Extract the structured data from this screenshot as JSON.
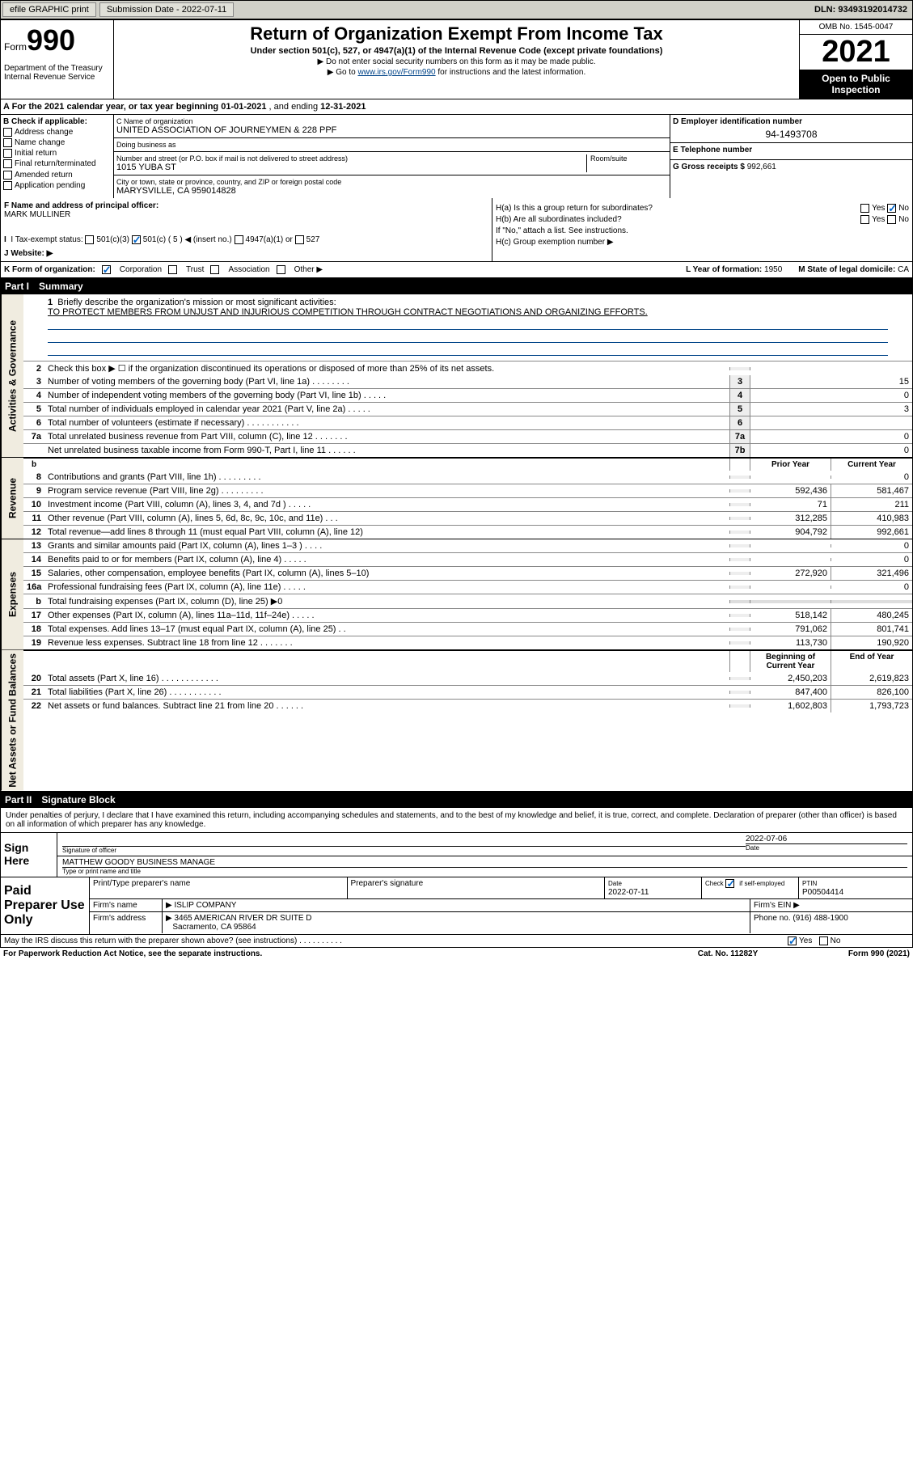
{
  "top_bar": {
    "efile": "efile GRAPHIC print",
    "submission_label": "Submission Date",
    "submission_date": "2022-07-11",
    "dln_label": "DLN:",
    "dln": "93493192014732"
  },
  "header": {
    "form_word": "Form",
    "form_num": "990",
    "dept": "Department of the Treasury Internal Revenue Service",
    "title": "Return of Organization Exempt From Income Tax",
    "sub": "Under section 501(c), 527, or 4947(a)(1) of the Internal Revenue Code (except private foundations)",
    "note1": "▶ Do not enter social security numbers on this form as it may be made public.",
    "note2_pre": "▶ Go to ",
    "note2_link": "www.irs.gov/Form990",
    "note2_post": " for instructions and the latest information.",
    "omb": "OMB No. 1545-0047",
    "year": "2021",
    "open": "Open to Public Inspection"
  },
  "period": {
    "label_a": "A For the 2021 calendar year, or tax year beginning ",
    "begin": "01-01-2021",
    "mid": " , and ending ",
    "end": "12-31-2021"
  },
  "box_b": {
    "label": "B Check if applicable:",
    "opts": [
      "Address change",
      "Name change",
      "Initial return",
      "Final return/terminated",
      "Amended return",
      "Application pending"
    ]
  },
  "box_c": {
    "name_lbl": "C Name of organization",
    "name": "UNITED ASSOCIATION OF JOURNEYMEN & 228 PPF",
    "dba_lbl": "Doing business as",
    "dba": "",
    "street_lbl": "Number and street (or P.O. box if mail is not delivered to street address)",
    "room_lbl": "Room/suite",
    "street": "1015 YUBA ST",
    "city_lbl": "City or town, state or province, country, and ZIP or foreign postal code",
    "city": "MARYSVILLE, CA  959014828"
  },
  "box_d": {
    "lbl": "D Employer identification number",
    "val": "94-1493708"
  },
  "box_e": {
    "lbl": "E Telephone number",
    "val": ""
  },
  "box_g": {
    "lbl": "G Gross receipts $",
    "val": "992,661"
  },
  "box_f": {
    "lbl": "F Name and address of principal officer:",
    "val": "MARK MULLINER"
  },
  "box_h": {
    "a": "H(a)  Is this a group return for subordinates?",
    "a_yes": "Yes",
    "a_no": "No",
    "a_checked": "No",
    "b": "H(b)  Are all subordinates included?",
    "b_yes": "Yes",
    "b_no": "No",
    "b_note": "If \"No,\" attach a list. See instructions.",
    "c": "H(c)  Group exemption number ▶"
  },
  "box_i": {
    "lbl": "I  Tax-exempt status:",
    "o1": "501(c)(3)",
    "o2": "501(c) ( 5 ) ◀ (insert no.)",
    "o2_checked": true,
    "o3": "4947(a)(1) or",
    "o4": "527"
  },
  "box_j": {
    "lbl": "J  Website: ▶",
    "val": ""
  },
  "box_k": {
    "lbl": "K Form of organization:",
    "o1": "Corporation",
    "o1_checked": true,
    "o2": "Trust",
    "o3": "Association",
    "o4": "Other ▶",
    "l_lbl": "L Year of formation:",
    "l_val": "1950",
    "m_lbl": "M State of legal domicile:",
    "m_val": "CA"
  },
  "part1": {
    "num": "Part I",
    "title": "Summary",
    "q1_lbl": "Briefly describe the organization's mission or most significant activities:",
    "q1_val": "TO PROTECT MEMBERS FROM UNJUST AND INJURIOUS COMPETITION THROUGH CONTRACT NEGOTIATIONS AND ORGANIZING EFFORTS.",
    "q2": "Check this box ▶ ☐  if the organization discontinued its operations or disposed of more than 25% of its net assets."
  },
  "governance_lines": [
    {
      "n": "3",
      "d": "Number of voting members of the governing body (Part VI, line 1a)   .   .   .   .   .   .   .   .",
      "k": "3",
      "v": "15"
    },
    {
      "n": "4",
      "d": "Number of independent voting members of the governing body (Part VI, line 1b)   .   .   .   .   .",
      "k": "4",
      "v": "0"
    },
    {
      "n": "5",
      "d": "Total number of individuals employed in calendar year 2021 (Part V, line 2a)   .   .   .   .   .",
      "k": "5",
      "v": "3"
    },
    {
      "n": "6",
      "d": "Total number of volunteers (estimate if necessary)   .   .   .   .   .   .   .   .   .   .   .",
      "k": "6",
      "v": ""
    },
    {
      "n": "7a",
      "d": "Total unrelated business revenue from Part VIII, column (C), line 12   .   .   .   .   .   .   .",
      "k": "7a",
      "v": "0"
    },
    {
      "n": "",
      "d": "Net unrelated business taxable income from Form 990-T, Part I, line 11   .   .   .   .   .   .",
      "k": "7b",
      "v": "0"
    }
  ],
  "col_hdr": {
    "b": "b",
    "prior": "Prior Year",
    "current": "Current Year"
  },
  "revenue_lines": [
    {
      "n": "8",
      "d": "Contributions and grants (Part VIII, line 1h)   .   .   .   .   .   .   .   .   .",
      "p": "",
      "c": "0"
    },
    {
      "n": "9",
      "d": "Program service revenue (Part VIII, line 2g)   .   .   .   .   .   .   .   .   .",
      "p": "592,436",
      "c": "581,467"
    },
    {
      "n": "10",
      "d": "Investment income (Part VIII, column (A), lines 3, 4, and 7d )   .   .   .   .   .",
      "p": "71",
      "c": "211"
    },
    {
      "n": "11",
      "d": "Other revenue (Part VIII, column (A), lines 5, 6d, 8c, 9c, 10c, and 11e)   .   .   .",
      "p": "312,285",
      "c": "410,983"
    },
    {
      "n": "12",
      "d": "Total revenue—add lines 8 through 11 (must equal Part VIII, column (A), line 12)",
      "p": "904,792",
      "c": "992,661"
    }
  ],
  "expense_lines": [
    {
      "n": "13",
      "d": "Grants and similar amounts paid (Part IX, column (A), lines 1–3 )   .   .   .   .",
      "p": "",
      "c": "0"
    },
    {
      "n": "14",
      "d": "Benefits paid to or for members (Part IX, column (A), line 4)   .   .   .   .   .",
      "p": "",
      "c": "0"
    },
    {
      "n": "15",
      "d": "Salaries, other compensation, employee benefits (Part IX, column (A), lines 5–10)",
      "p": "272,920",
      "c": "321,496"
    },
    {
      "n": "16a",
      "d": "Professional fundraising fees (Part IX, column (A), line 11e)   .   .   .   .   .",
      "p": "",
      "c": "0"
    },
    {
      "n": "b",
      "d": "Total fundraising expenses (Part IX, column (D), line 25) ▶0",
      "p": "",
      "c": "",
      "shade": true
    },
    {
      "n": "17",
      "d": "Other expenses (Part IX, column (A), lines 11a–11d, 11f–24e)   .   .   .   .   .",
      "p": "518,142",
      "c": "480,245"
    },
    {
      "n": "18",
      "d": "Total expenses. Add lines 13–17 (must equal Part IX, column (A), line 25)   .   .",
      "p": "791,062",
      "c": "801,741"
    },
    {
      "n": "19",
      "d": "Revenue less expenses. Subtract line 18 from line 12   .   .   .   .   .   .   .",
      "p": "113,730",
      "c": "190,920"
    }
  ],
  "net_hdr": {
    "prior": "Beginning of Current Year",
    "current": "End of Year"
  },
  "net_lines": [
    {
      "n": "20",
      "d": "Total assets (Part X, line 16)   .   .   .   .   .   .   .   .   .   .   .   .",
      "p": "2,450,203",
      "c": "2,619,823"
    },
    {
      "n": "21",
      "d": "Total liabilities (Part X, line 26)   .   .   .   .   .   .   .   .   .   .   .",
      "p": "847,400",
      "c": "826,100"
    },
    {
      "n": "22",
      "d": "Net assets or fund balances. Subtract line 21 from line 20   .   .   .   .   .   .",
      "p": "1,602,803",
      "c": "1,793,723"
    }
  ],
  "vtabs": {
    "gov": "Activities & Governance",
    "rev": "Revenue",
    "exp": "Expenses",
    "net": "Net Assets or Fund Balances"
  },
  "part2": {
    "num": "Part II",
    "title": "Signature Block",
    "decl": "Under penalties of perjury, I declare that I have examined this return, including accompanying schedules and statements, and to the best of my knowledge and belief, it is true, correct, and complete. Declaration of preparer (other than officer) is based on all information of which preparer has any knowledge."
  },
  "sign": {
    "label": "Sign Here",
    "sig_lbl": "Signature of officer",
    "date_lbl": "Date",
    "date": "2022-07-06",
    "name": "MATTHEW GOODY  BUSINESS MANAGE",
    "name_lbl": "Type or print name and title"
  },
  "prep": {
    "label": "Paid Preparer Use Only",
    "r1": {
      "c1": "Print/Type preparer's name",
      "c2": "Preparer's signature",
      "c3_lbl": "Date",
      "c3": "2022-07-11",
      "c4_lbl": "Check",
      "c4_box": "if self-employed",
      "c4_checked": true,
      "c5_lbl": "PTIN",
      "c5": "P00504414"
    },
    "r2": {
      "lbl": "Firm's name",
      "arrow": "▶",
      "val": "ISLIP COMPANY",
      "ein_lbl": "Firm's EIN ▶",
      "ein": ""
    },
    "r3": {
      "lbl": "Firm's address",
      "arrow": "▶",
      "val1": "3465 AMERICAN RIVER DR SUITE D",
      "val2": "Sacramento, CA  95864",
      "ph_lbl": "Phone no.",
      "ph": "(916) 488-1900"
    }
  },
  "discuss": {
    "q": "May the IRS discuss this return with the preparer shown above? (see instructions)   .   .   .   .   .   .   .   .   .   .",
    "yes": "Yes",
    "no": "No",
    "checked": "Yes"
  },
  "footer": {
    "pra": "For Paperwork Reduction Act Notice, see the separate instructions.",
    "cat": "Cat. No. 11282Y",
    "form": "Form 990 (2021)"
  },
  "colors": {
    "topbar_bg": "#d0d0c8",
    "black": "#000000",
    "link": "#004488",
    "check": "#0066cc",
    "vtab_bg": "#f0ece0",
    "shade_bg": "#dddddd"
  }
}
